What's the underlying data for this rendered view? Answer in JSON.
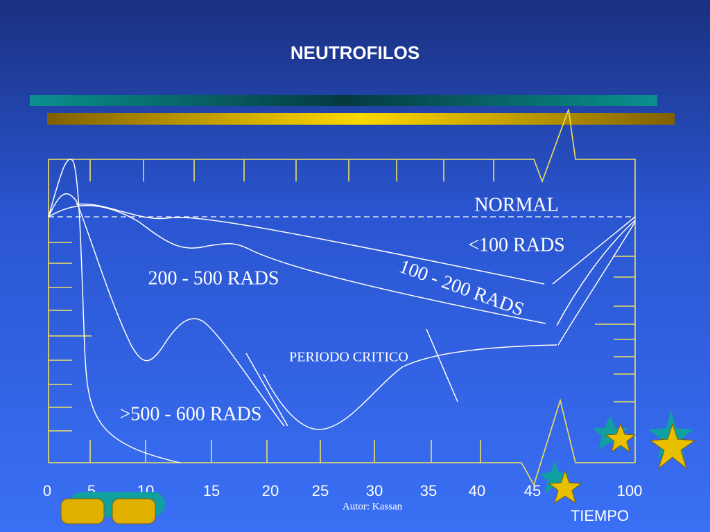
{
  "title": "NEUTROFILOS",
  "curve_labels": {
    "normal": "NORMAL",
    "under_100": "<100 RADS",
    "r200_500": "200 - 500 RADS",
    "r100_200": "100 - 200 RADS",
    "critical": "PERIODO CRITICO",
    "r500_600": ">500 - 600 RADS"
  },
  "x_axis": {
    "labels": [
      "0",
      "5",
      "10",
      "15",
      "20",
      "25",
      "30",
      "35",
      "40",
      "45",
      "100"
    ],
    "title": "TIEMPO"
  },
  "footer": {
    "author": "Autor: Kassan"
  }
}
